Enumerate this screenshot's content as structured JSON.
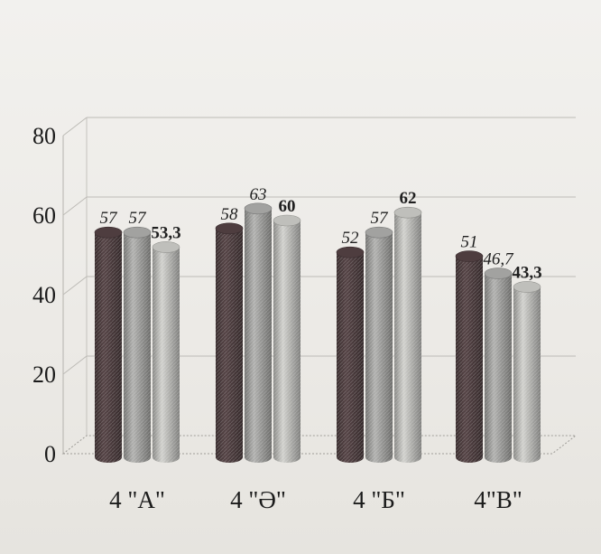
{
  "chart_data": {
    "type": "bar",
    "style": "3d-cylinder",
    "categories": [
      "4 \"А\"",
      "4 \"Ә\"",
      "4 \"Б\"",
      "4\"В\""
    ],
    "series": [
      {
        "values": [
          57,
          58,
          52,
          51
        ]
      },
      {
        "values": [
          57,
          63,
          57,
          46.7
        ]
      },
      {
        "values": [
          53.3,
          60,
          62,
          43.3
        ]
      }
    ],
    "data_labels": [
      [
        "57",
        "58",
        "52",
        "51"
      ],
      [
        "57",
        "63",
        "57",
        "46,7"
      ],
      [
        "53,3",
        "60",
        "62",
        "43,3"
      ]
    ],
    "y_ticks": [
      "0",
      "20",
      "40",
      "60",
      "80"
    ],
    "ylim": [
      0,
      80
    ],
    "grid": true,
    "legend": "none",
    "title": "",
    "xlabel": "",
    "ylabel": "",
    "colors": [
      "#4a3a3c",
      "#9a9a98",
      "#b6b6b2"
    ]
  }
}
